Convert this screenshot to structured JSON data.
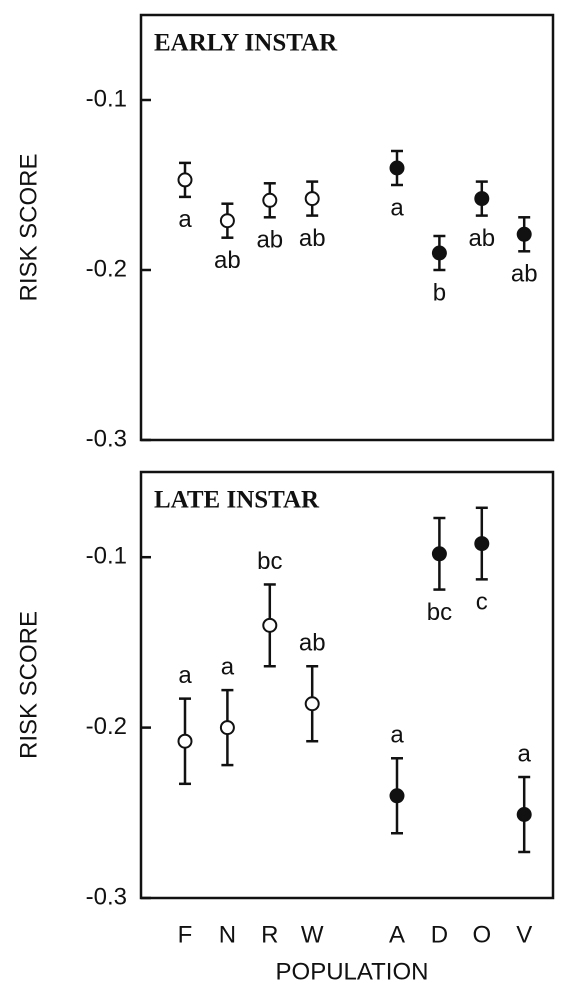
{
  "chart_data": [
    {
      "type": "errorbar",
      "title": "EARLY INSTAR",
      "ylabel": "RISK SCORE",
      "values": [
        -0.147,
        -0.171,
        -0.159,
        -0.158,
        null,
        -0.14,
        -0.19,
        -0.158,
        -0.179
      ],
      "errors": [
        0.01,
        0.01,
        0.01,
        0.01,
        null,
        0.01,
        0.01,
        0.01,
        0.01
      ],
      "letters": [
        "a",
        "ab",
        "ab",
        "ab",
        null,
        "a",
        "b",
        "ab",
        "ab"
      ],
      "letter_side": [
        "below",
        "below",
        "below",
        "below",
        null,
        "below",
        "below",
        "below",
        "below"
      ],
      "marker_fill": [
        "#ffffff",
        "#ffffff",
        "#ffffff",
        "#ffffff",
        null,
        "#111111",
        "#111111",
        "#111111",
        "#111111"
      ],
      "ylim": [
        -0.3,
        -0.05
      ],
      "yticks": [
        -0.3,
        -0.2,
        -0.1
      ]
    },
    {
      "type": "errorbar",
      "title": "LATE INSTAR",
      "ylabel": "RISK SCORE",
      "xlabel": "POPULATION",
      "categories": [
        "F",
        "N",
        "R",
        "W",
        null,
        "A",
        "D",
        "O",
        "V"
      ],
      "values": [
        -0.208,
        -0.2,
        -0.14,
        -0.186,
        null,
        -0.24,
        -0.098,
        -0.092,
        -0.251
      ],
      "errors": [
        0.025,
        0.022,
        0.024,
        0.022,
        null,
        0.022,
        0.021,
        0.021,
        0.022
      ],
      "letters": [
        "a",
        "a",
        "bc",
        "ab",
        null,
        "a",
        "bc",
        "c",
        "a"
      ],
      "letter_side": [
        "above",
        "above",
        "above",
        "above",
        null,
        "above",
        "below",
        "below",
        "above"
      ],
      "marker_fill": [
        "#ffffff",
        "#ffffff",
        "#ffffff",
        "#ffffff",
        null,
        "#111111",
        "#111111",
        "#111111",
        "#111111"
      ],
      "ylim": [
        -0.3,
        -0.05
      ],
      "yticks": [
        -0.3,
        -0.2,
        -0.1
      ]
    }
  ]
}
